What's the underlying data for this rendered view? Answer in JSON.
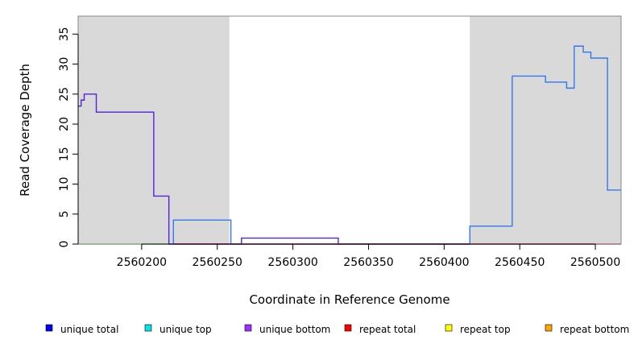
{
  "chart_data": {
    "type": "line",
    "xlabel": "Coordinate in Reference Genome",
    "ylabel": "Read Coverage Depth",
    "xlim": [
      2560158,
      2560517
    ],
    "ylim": [
      0,
      38
    ],
    "x_ticks": [
      2560200,
      2560250,
      2560300,
      2560350,
      2560400,
      2560450,
      2560500
    ],
    "y_ticks": [
      0,
      5,
      10,
      15,
      20,
      25,
      30,
      35
    ],
    "shaded_regions": [
      {
        "from": 2560158,
        "to": 2560258,
        "color": "#d9d9d9"
      },
      {
        "from": 2560417,
        "to": 2560517,
        "color": "#d9d9d9"
      }
    ],
    "series": [
      {
        "name": "unique bottom",
        "color": "#5522dd",
        "points": [
          [
            2560158,
            23
          ],
          [
            2560160,
            23
          ],
          [
            2560160,
            24
          ],
          [
            2560162,
            24
          ],
          [
            2560162,
            25
          ],
          [
            2560170,
            25
          ],
          [
            2560170,
            22
          ],
          [
            2560208,
            22
          ],
          [
            2560208,
            8
          ],
          [
            2560218,
            8
          ],
          [
            2560218,
            0
          ],
          [
            2560221,
            0
          ],
          [
            2560221,
            0
          ],
          [
            2560266,
            0
          ],
          [
            2560266,
            1
          ],
          [
            2560330,
            1
          ],
          [
            2560330,
            0
          ],
          [
            2560417,
            0
          ]
        ]
      },
      {
        "name": "unique total",
        "color": "#3377ee",
        "points": [
          [
            2560221,
            0
          ],
          [
            2560221,
            4
          ],
          [
            2560259,
            4
          ],
          [
            2560259,
            0
          ],
          [
            2560266,
            0
          ],
          [
            2560417,
            0
          ],
          [
            2560417,
            3
          ],
          [
            2560445,
            3
          ],
          [
            2560445,
            28
          ],
          [
            2560467,
            28
          ],
          [
            2560467,
            27
          ],
          [
            2560481,
            27
          ],
          [
            2560481,
            26
          ],
          [
            2560486,
            26
          ],
          [
            2560486,
            33
          ],
          [
            2560492,
            33
          ],
          [
            2560492,
            32
          ],
          [
            2560497,
            32
          ],
          [
            2560497,
            31
          ],
          [
            2560508,
            31
          ],
          [
            2560508,
            9
          ],
          [
            2560517,
            9
          ]
        ]
      },
      {
        "name": "unique top",
        "color": "#88dd88",
        "points": [
          [
            2560158,
            0
          ],
          [
            2560218,
            0
          ]
        ]
      },
      {
        "name": "repeat total",
        "color": "#dd3355",
        "points": [
          [
            2560221,
            0
          ],
          [
            2560517,
            0
          ]
        ]
      }
    ],
    "legend_placement": "bottom",
    "legend": [
      {
        "label": "unique total",
        "color": "#0000ff"
      },
      {
        "label": "unique top",
        "color": "#00e5e5"
      },
      {
        "label": "unique bottom",
        "color": "#9b30ff"
      },
      {
        "label": "repeat total",
        "color": "#ff0000"
      },
      {
        "label": "repeat top",
        "color": "#ffff00"
      },
      {
        "label": "repeat bottom",
        "color": "#ffa500"
      }
    ]
  }
}
